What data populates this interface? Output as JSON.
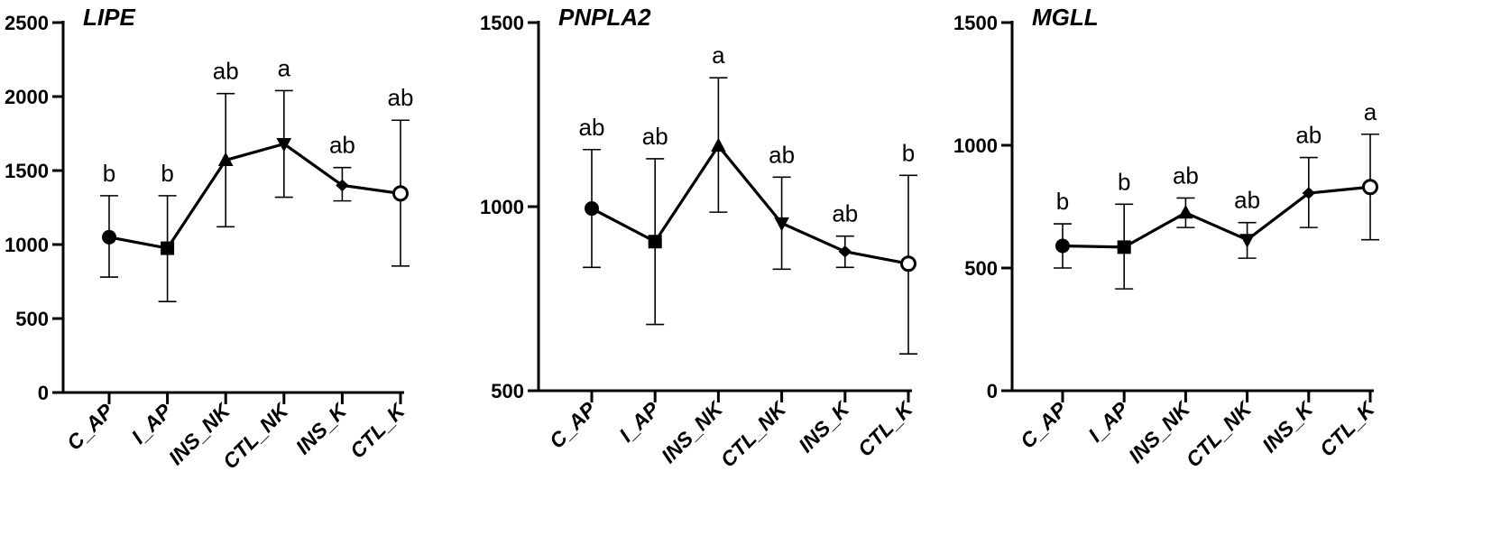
{
  "chart_data": [
    {
      "type": "line",
      "title": "LIPE",
      "categories": [
        "C_AP",
        "I_AP",
        "INS_NK",
        "CTL_NK",
        "INS_K",
        "CTL_K"
      ],
      "ylim": [
        0,
        2500
      ],
      "yticks": [
        0,
        500,
        1000,
        1500,
        2000,
        2500
      ],
      "ytick_labels": [
        "0",
        "500",
        "1000",
        "1500",
        "2000",
        "2500"
      ],
      "values": [
        1050,
        975,
        1570,
        1680,
        1400,
        1345
      ],
      "error_low": [
        780,
        615,
        1120,
        1320,
        1295,
        855
      ],
      "error_high": [
        1330,
        1330,
        2020,
        2040,
        1520,
        1840
      ],
      "markers": [
        "circle",
        "square",
        "triangle-up",
        "triangle-down",
        "diamond",
        "circle-open"
      ],
      "letters": [
        "b",
        "b",
        "ab",
        "a",
        "ab",
        "ab"
      ],
      "grid": false
    },
    {
      "type": "line",
      "title": "PNPLA2",
      "categories": [
        "C_AP",
        "I_AP",
        "INS_NK",
        "CTL_NK",
        "INS_K",
        "CTL_K"
      ],
      "ylim": [
        500,
        1500
      ],
      "yticks": [
        500,
        1000,
        1500
      ],
      "ytick_labels": [
        "500",
        "1000",
        "1500"
      ],
      "values": [
        995,
        905,
        1165,
        955,
        878,
        845
      ],
      "error_low": [
        835,
        680,
        985,
        830,
        835,
        600
      ],
      "error_high": [
        1155,
        1130,
        1350,
        1080,
        920,
        1085
      ],
      "markers": [
        "circle",
        "square",
        "triangle-up",
        "triangle-down",
        "diamond",
        "circle-open"
      ],
      "letters": [
        "ab",
        "ab",
        "a",
        "ab",
        "ab",
        "b"
      ],
      "grid": false
    },
    {
      "type": "line",
      "title": "MGLL",
      "categories": [
        "C_AP",
        "I_AP",
        "INS_NK",
        "CTL_NK",
        "INS_K",
        "CTL_K"
      ],
      "ylim": [
        0,
        1500
      ],
      "yticks": [
        0,
        500,
        1000,
        1500
      ],
      "ytick_labels": [
        "0",
        "500",
        "1000",
        "1500"
      ],
      "values": [
        590,
        585,
        725,
        615,
        805,
        830
      ],
      "error_low": [
        500,
        415,
        665,
        540,
        665,
        615
      ],
      "error_high": [
        680,
        760,
        785,
        685,
        950,
        1045
      ],
      "markers": [
        "circle",
        "square",
        "triangle-up",
        "triangle-down",
        "diamond",
        "circle-open"
      ],
      "letters": [
        "b",
        "b",
        "ab",
        "ab",
        "ab",
        "a"
      ],
      "grid": false
    }
  ]
}
